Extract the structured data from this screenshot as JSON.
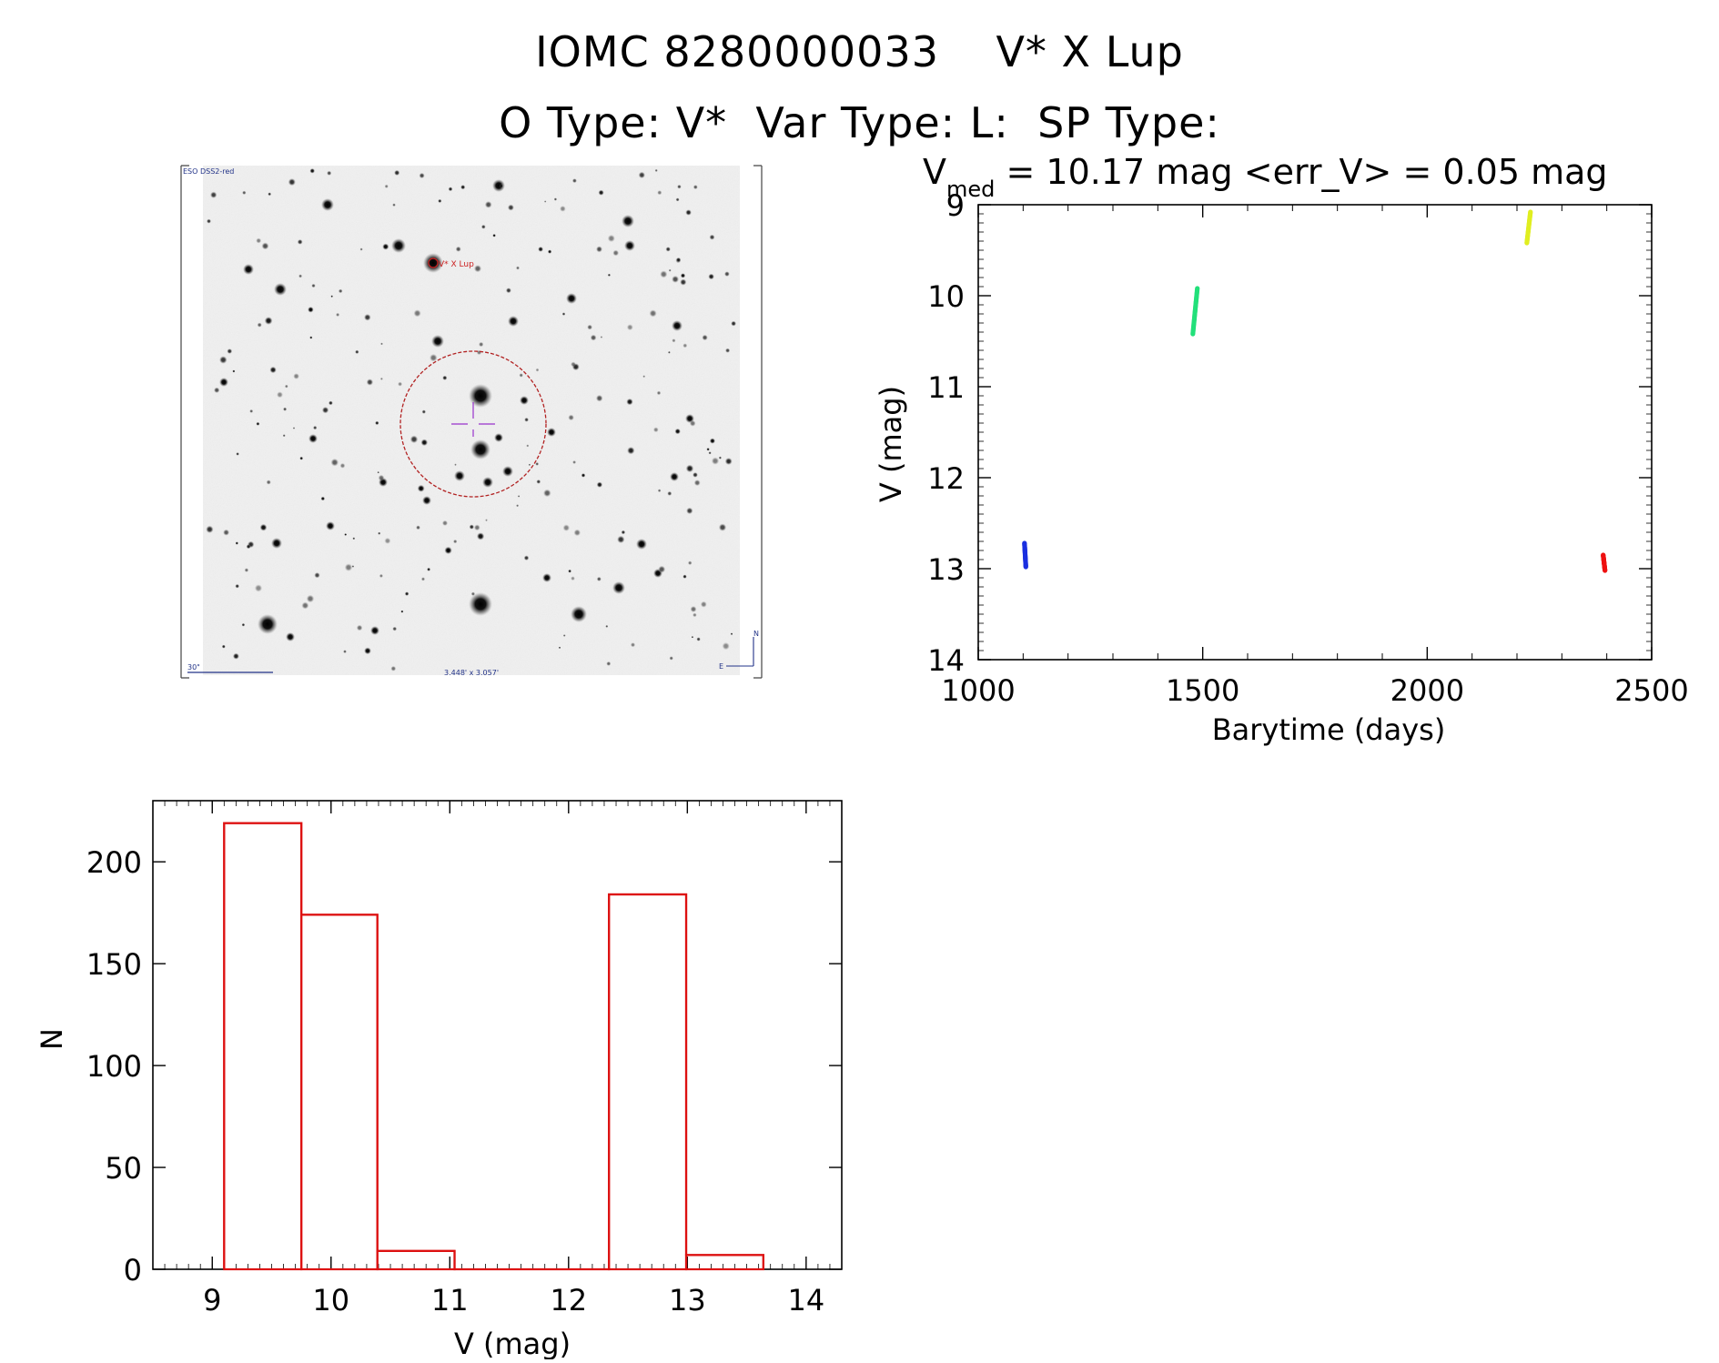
{
  "header": {
    "title_line1": "IOMC 8280000033    V* X Lup",
    "title_line2": "O Type: V*  Var Type: L:  SP Type:"
  },
  "finder_chart": {
    "survey_label": "ESO DSS2-red",
    "target_label": "V* X Lup",
    "scale_label": "30\"",
    "fov_label": "3.448' x 3.057'",
    "north_label": "N",
    "east_label": "E"
  },
  "chart_data": [
    {
      "type": "scatter",
      "name": "light-curve",
      "title_main": "V",
      "title_sub": "med",
      "title_rest": " = 10.17 mag <err_V> = 0.05 mag",
      "xlabel": "Barytime (days)",
      "ylabel": "V (mag)",
      "xlim": [
        1000,
        2500
      ],
      "ylim": [
        14,
        9
      ],
      "y_inverted": true,
      "xticks": [
        1000,
        1500,
        2000,
        2500
      ],
      "yticks": [
        9,
        10,
        11,
        12,
        13,
        14
      ],
      "clusters": [
        {
          "color": "#1a2fe0",
          "x_start": 1103,
          "x_end": 1106,
          "y_start": 12.72,
          "y_end": 12.98
        },
        {
          "color": "#22e07a",
          "x_start": 1478,
          "x_end": 1488,
          "y_start": 10.42,
          "y_end": 9.92
        },
        {
          "color": "#e0ee20",
          "x_start": 2222,
          "x_end": 2230,
          "y_start": 9.42,
          "y_end": 9.08
        },
        {
          "color": "#ee1111",
          "x_start": 2392,
          "x_end": 2396,
          "y_start": 12.85,
          "y_end": 13.02
        }
      ]
    },
    {
      "type": "bar",
      "name": "histogram",
      "xlabel": "V (mag)",
      "ylabel": "N",
      "xlim": [
        8.5,
        14.3
      ],
      "ylim": [
        0,
        230
      ],
      "xticks": [
        9,
        10,
        11,
        12,
        13,
        14
      ],
      "yticks": [
        0,
        50,
        100,
        150,
        200
      ],
      "bar_color": "#dd1111",
      "bins": [
        {
          "x0": 9.1,
          "x1": 9.75,
          "value": 219
        },
        {
          "x0": 9.75,
          "x1": 10.39,
          "value": 174
        },
        {
          "x0": 10.39,
          "x1": 11.04,
          "value": 9
        },
        {
          "x0": 11.04,
          "x1": 11.69,
          "value": 0
        },
        {
          "x0": 11.69,
          "x1": 12.34,
          "value": 0
        },
        {
          "x0": 12.34,
          "x1": 12.99,
          "value": 184
        },
        {
          "x0": 12.99,
          "x1": 13.64,
          "value": 7
        }
      ]
    }
  ]
}
